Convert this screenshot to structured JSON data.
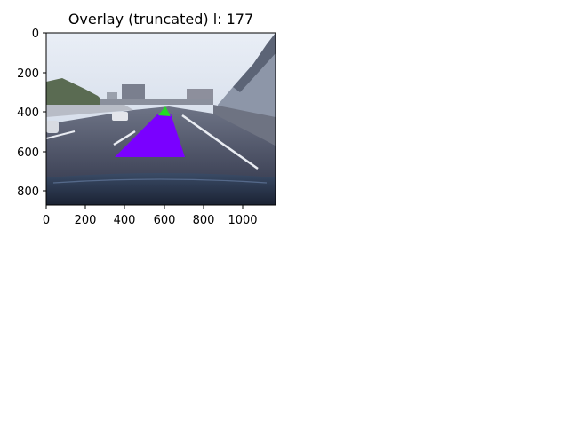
{
  "figure": {
    "title": "Overlay (truncated) l: 177"
  },
  "axes": {
    "x_ticks": [
      "0",
      "200",
      "400",
      "600",
      "800",
      "1000"
    ],
    "y_ticks": [
      "0",
      "200",
      "400",
      "600",
      "800"
    ],
    "x_range": [
      0,
      1164
    ],
    "y_range": [
      874,
      0
    ]
  },
  "overlay": {
    "lane_fill_color": "#7a00ff",
    "vanishing_marker_color": "#22dd22"
  }
}
